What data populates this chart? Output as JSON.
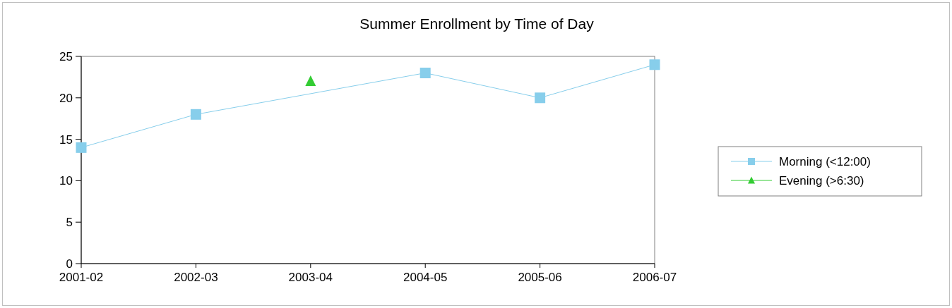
{
  "chart_data": {
    "type": "line",
    "title": "Summer Enrollment by Time of Day",
    "categories": [
      "2001-02",
      "2002-03",
      "2003-04",
      "2004-05",
      "2005-06",
      "2006-07"
    ],
    "series": [
      {
        "name": "Morning (<12:00)",
        "color": "#87ceeb",
        "marker": "square",
        "values": [
          14,
          18,
          null,
          23,
          20,
          24
        ]
      },
      {
        "name": "Evening (>6:30)",
        "color": "#33cc33",
        "marker": "triangle",
        "values": [
          null,
          null,
          22,
          null,
          null,
          null
        ]
      }
    ],
    "ylim": [
      0,
      25
    ],
    "yticks": [
      0,
      5,
      10,
      15,
      20,
      25
    ],
    "grid": false,
    "legend": "right"
  }
}
